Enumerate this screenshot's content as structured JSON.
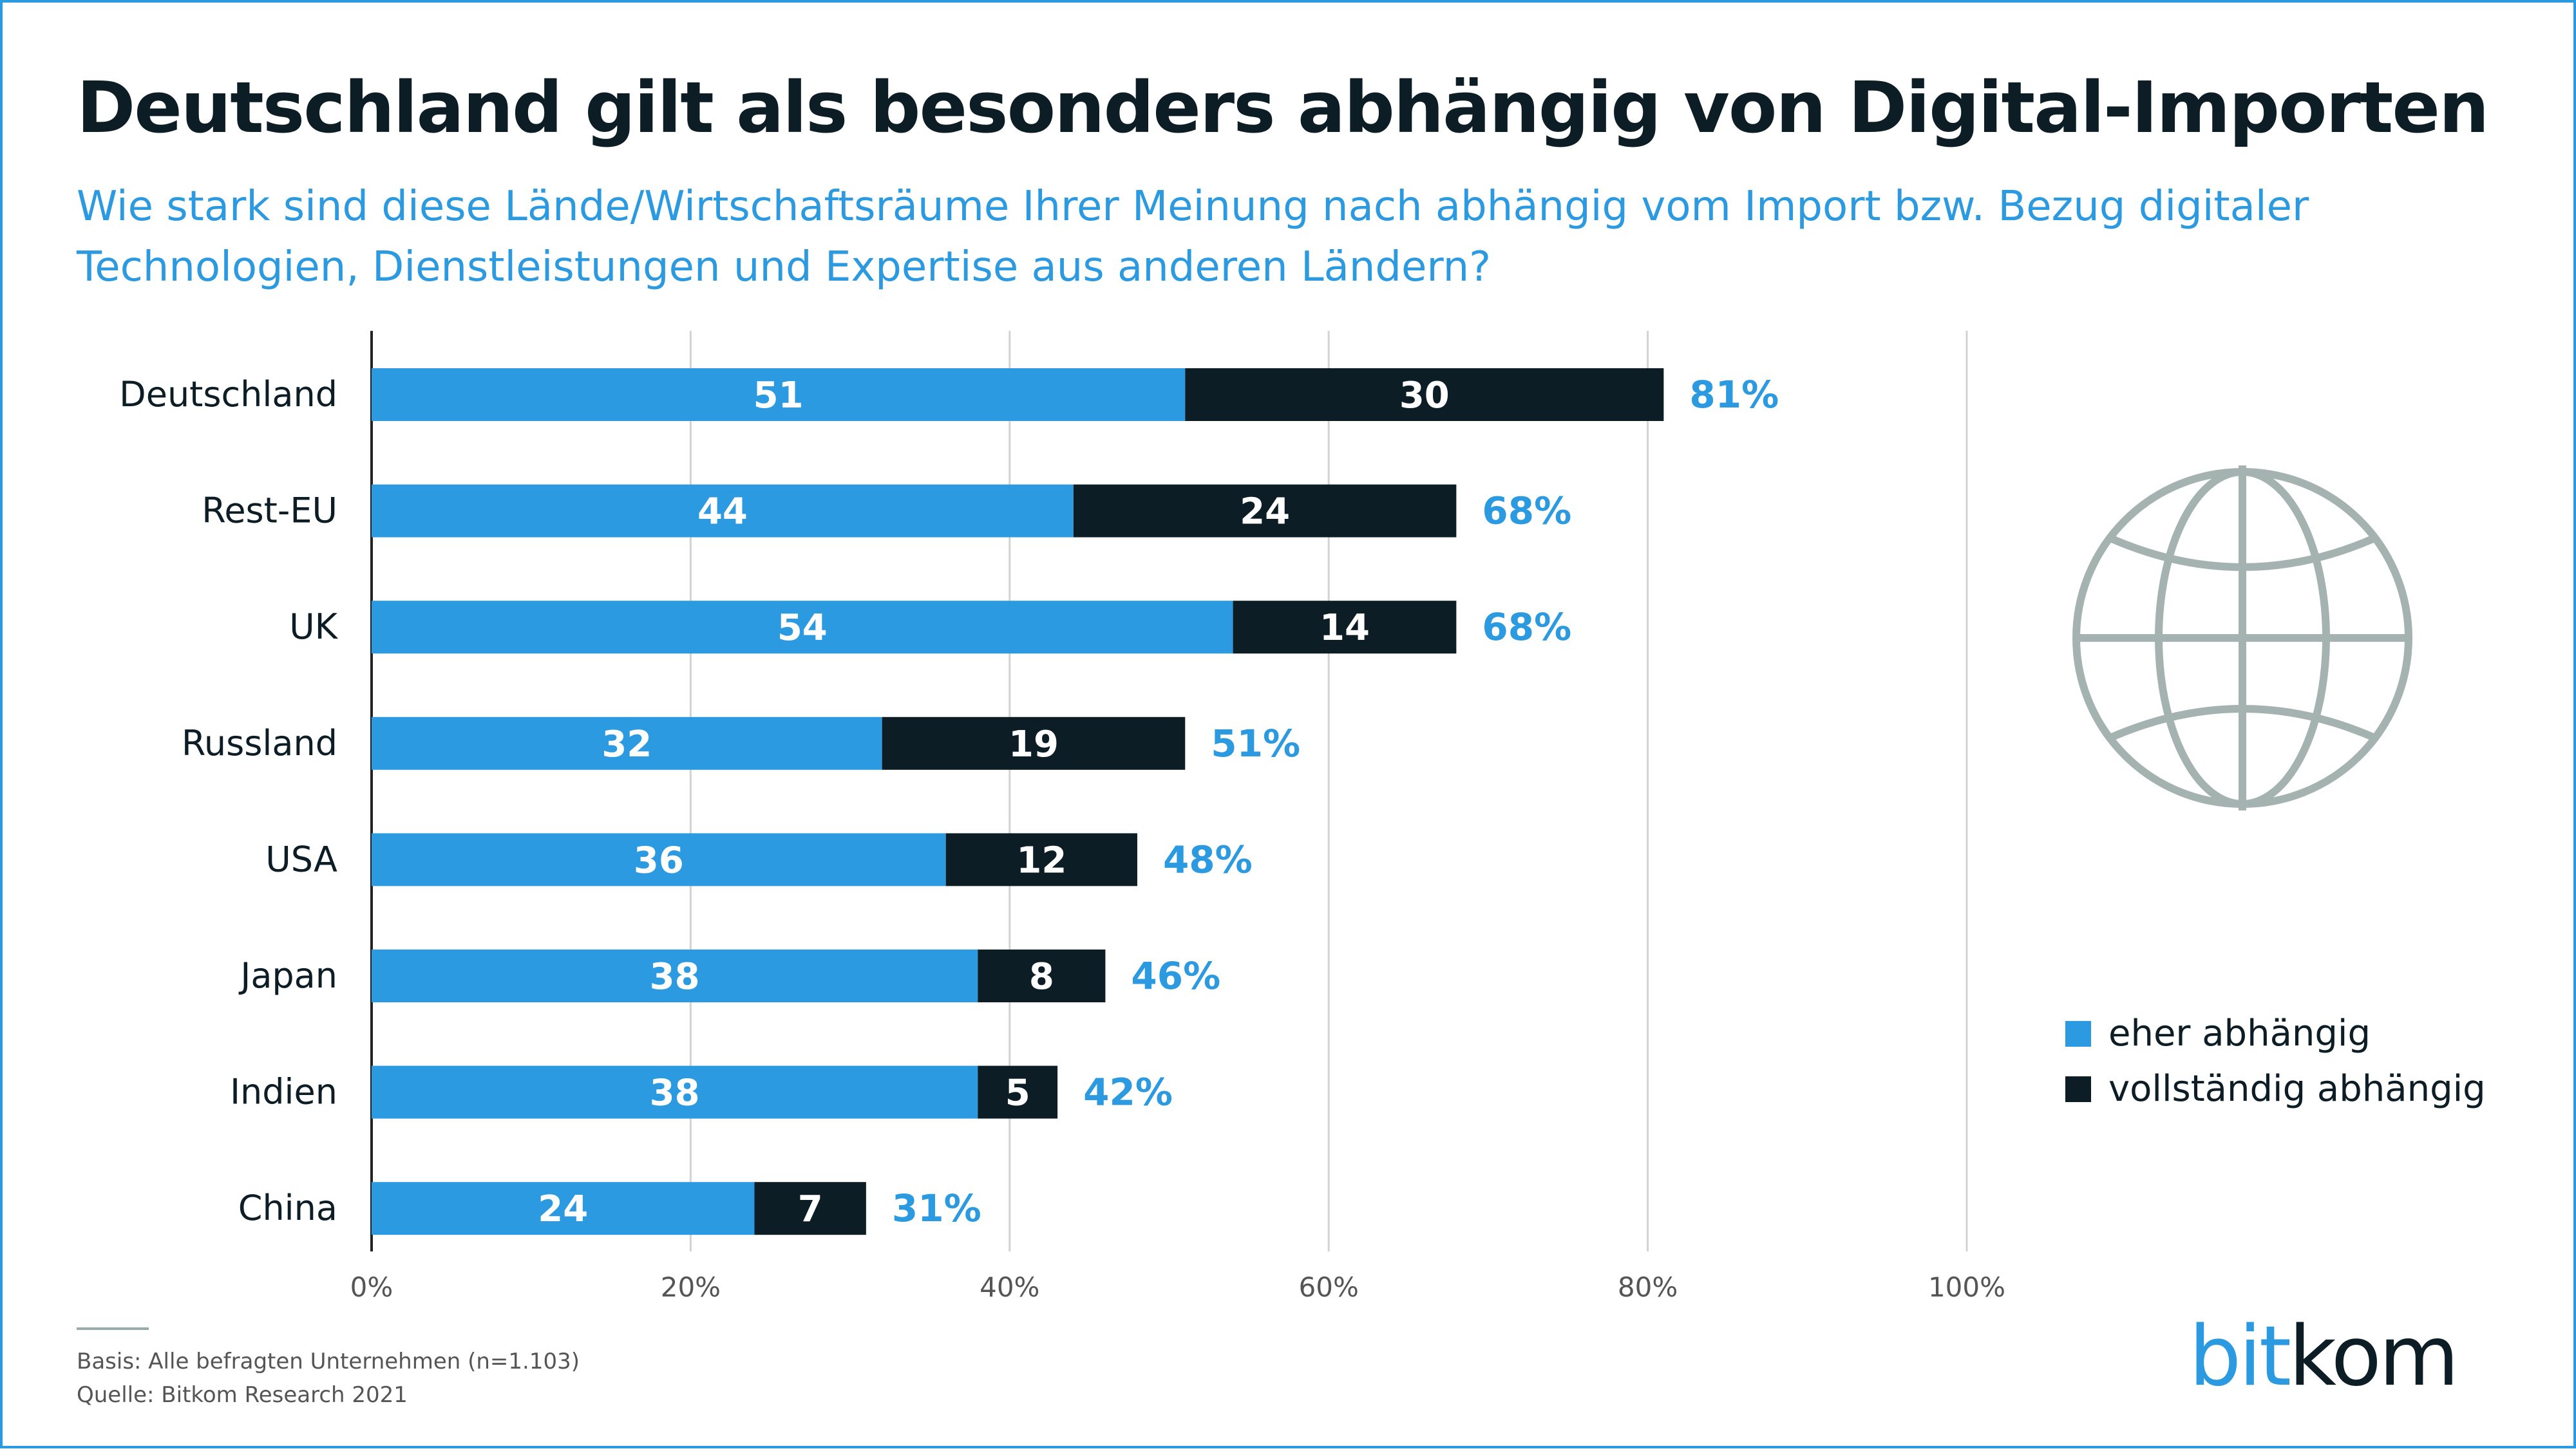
{
  "title": "Deutschland gilt als besonders abhängig von Digital-Importen",
  "subtitle": "Wie stark sind diese Lände/Wirtschaftsräume Ihrer Meinung nach abhängig vom Import bzw. Bezug digitaler Technologien, Dienstleistungen und Expertise aus anderen Ländern?",
  "footer": {
    "basis": "Basis: Alle befragten Unternehmen (n=1.103)",
    "source": "Quelle: Bitkom Research 2021"
  },
  "logo": {
    "part1": "bit",
    "part2": "kom"
  },
  "icon": "globe-icon",
  "colors": {
    "accent": "#2c9ae0",
    "dark": "#0d1d26",
    "grid": "#d3d3d3",
    "globe": "#a4b3b0"
  },
  "chart_data": {
    "type": "bar",
    "orientation": "horizontal",
    "stacked": true,
    "categories": [
      "Deutschland",
      "Rest-EU",
      "UK",
      "Russland",
      "USA",
      "Japan",
      "Indien",
      "China"
    ],
    "series": [
      {
        "name": "eher abhängig",
        "color": "#2c9ae0",
        "values": [
          51,
          44,
          54,
          32,
          36,
          38,
          38,
          24
        ]
      },
      {
        "name": "vollständig abhängig",
        "color": "#0d1d26",
        "values": [
          30,
          24,
          14,
          19,
          12,
          8,
          5,
          7
        ]
      }
    ],
    "totals": [
      "81%",
      "68%",
      "68%",
      "51%",
      "48%",
      "46%",
      "42%",
      "31%"
    ],
    "xlim": [
      0,
      100
    ],
    "xticks": [
      0,
      20,
      40,
      60,
      80,
      100
    ],
    "xtick_labels": [
      "0%",
      "20%",
      "40%",
      "60%",
      "80%",
      "100%"
    ],
    "grid": true,
    "legend_position": "right"
  }
}
